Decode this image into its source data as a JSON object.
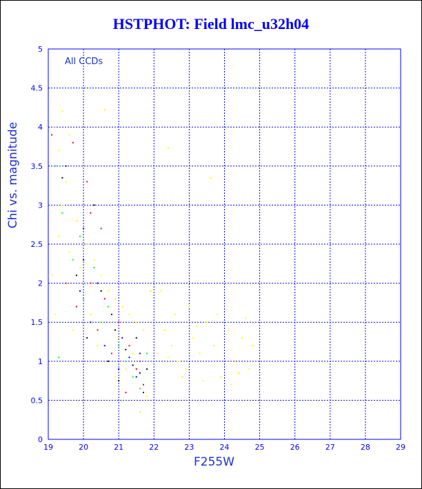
{
  "chart_data": {
    "type": "scatter",
    "title": "HSTPHOT: Field lmc_u32h04",
    "xlabel": "F255W",
    "ylabel": "Chi vs. magnitude",
    "annotation": "All CCDs",
    "xlim": [
      19,
      29
    ],
    "ylim": [
      0,
      5
    ],
    "x_ticks": [
      "19",
      "20",
      "21",
      "22",
      "23",
      "24",
      "25",
      "26",
      "27",
      "28",
      "29"
    ],
    "y_ticks": [
      "0",
      "0.5",
      "1",
      "1.5",
      "2",
      "2.5",
      "3",
      "3.5",
      "4",
      "4.5",
      "5"
    ],
    "grid": true,
    "series": [
      {
        "color": "#ffff00",
        "points": [
          [
            19.2,
            4.0
          ],
          [
            19.4,
            4.2
          ],
          [
            19.6,
            3.9
          ],
          [
            19.3,
            3.7
          ],
          [
            19.5,
            3.3
          ],
          [
            19.4,
            3.0
          ],
          [
            19.3,
            2.6
          ],
          [
            19.6,
            2.4
          ],
          [
            19.8,
            2.8
          ],
          [
            19.9,
            2.2
          ],
          [
            20.1,
            2.5
          ],
          [
            20.3,
            2.3
          ],
          [
            20.5,
            2.1
          ],
          [
            20.7,
            1.9
          ],
          [
            20.9,
            1.8
          ],
          [
            21.1,
            1.7
          ],
          [
            21.3,
            1.6
          ],
          [
            21.5,
            1.5
          ],
          [
            21.7,
            1.4
          ],
          [
            21.9,
            1.9
          ],
          [
            20.6,
            4.22
          ],
          [
            22.4,
            3.73
          ],
          [
            23.6,
            3.35
          ],
          [
            22.2,
            1.9
          ],
          [
            22.3,
            1.4
          ],
          [
            22.5,
            1.2
          ],
          [
            22.7,
            1.0
          ],
          [
            22.9,
            0.9
          ],
          [
            23.1,
            1.3
          ],
          [
            23.3,
            1.1
          ],
          [
            23.5,
            1.5
          ],
          [
            23.7,
            1.2
          ],
          [
            23.9,
            0.8
          ],
          [
            24.1,
            1.4
          ],
          [
            24.3,
            1.0
          ],
          [
            24.5,
            1.3
          ],
          [
            24.7,
            0.9
          ],
          [
            24.8,
            1.2
          ],
          [
            22.6,
            1.6
          ],
          [
            23.0,
            1.7
          ],
          [
            23.4,
            0.75
          ],
          [
            24.2,
            0.7
          ],
          [
            22.8,
            0.8
          ],
          [
            24.6,
            1.55
          ],
          [
            23.2,
            1.45
          ],
          [
            22.4,
            1.05
          ],
          [
            23.8,
            1.6
          ],
          [
            24.4,
            0.85
          ],
          [
            21.6,
            0.35
          ],
          [
            21.8,
            0.55
          ],
          [
            20.9,
            0.8
          ],
          [
            21.2,
            0.9
          ],
          [
            21.4,
            1.1
          ],
          [
            19.7,
            1.4
          ],
          [
            20.2,
            1.6
          ],
          [
            20.4,
            1.2
          ],
          [
            19.1,
            2.1
          ],
          [
            19.2,
            1.6
          ],
          [
            21.0,
            1.3
          ],
          [
            22.1,
            1.1
          ]
        ]
      },
      {
        "color": "#ff0000",
        "points": [
          [
            19.1,
            3.9
          ],
          [
            19.7,
            3.8
          ],
          [
            20.1,
            3.3
          ],
          [
            19.5,
            2.0
          ],
          [
            20.2,
            2.0
          ],
          [
            20.6,
            1.8
          ],
          [
            21.0,
            1.5
          ],
          [
            21.3,
            1.2
          ],
          [
            21.5,
            0.9
          ],
          [
            21.7,
            0.7
          ],
          [
            21.2,
            0.6
          ],
          [
            20.8,
            1.1
          ],
          [
            20.4,
            1.4
          ],
          [
            19.8,
            1.7
          ],
          [
            21.6,
            1.0
          ],
          [
            20.5,
            2.7
          ],
          [
            20.2,
            2.9
          ]
        ]
      },
      {
        "color": "#00ff00",
        "points": [
          [
            19.2,
            3.5
          ],
          [
            19.4,
            2.9
          ],
          [
            19.9,
            2.6
          ],
          [
            20.3,
            2.2
          ],
          [
            20.7,
            1.7
          ],
          [
            21.0,
            1.2
          ],
          [
            21.2,
            1.0
          ],
          [
            21.4,
            0.8
          ],
          [
            21.6,
            0.65
          ],
          [
            20.9,
            1.4
          ],
          [
            20.5,
            1.5
          ],
          [
            20.0,
            1.8
          ],
          [
            19.7,
            2.3
          ],
          [
            21.8,
            1.1
          ],
          [
            19.3,
            1.05
          ]
        ]
      },
      {
        "color": "#0000ff",
        "points": [
          [
            19.5,
            3.5
          ],
          [
            20.0,
            2.7
          ],
          [
            20.4,
            2.0
          ],
          [
            20.8,
            1.6
          ],
          [
            21.1,
            1.3
          ],
          [
            21.3,
            1.05
          ],
          [
            21.5,
            0.8
          ],
          [
            21.7,
            0.6
          ],
          [
            21.6,
            1.1
          ],
          [
            20.6,
            1.2
          ],
          [
            20.2,
            1.5
          ],
          [
            19.9,
            1.9
          ],
          [
            21.0,
            0.9
          ]
        ]
      },
      {
        "color": "#000000",
        "points": [
          [
            19.4,
            3.35
          ],
          [
            20.3,
            3.0
          ],
          [
            20.0,
            2.3
          ],
          [
            20.5,
            1.9
          ],
          [
            20.9,
            1.4
          ],
          [
            21.2,
            1.15
          ],
          [
            21.4,
            0.95
          ],
          [
            21.6,
            0.85
          ],
          [
            21.8,
            0.9
          ],
          [
            20.7,
            1.0
          ],
          [
            21.0,
            0.75
          ],
          [
            20.1,
            1.3
          ],
          [
            19.8,
            2.1
          ],
          [
            21.5,
            1.3
          ]
        ]
      }
    ]
  }
}
